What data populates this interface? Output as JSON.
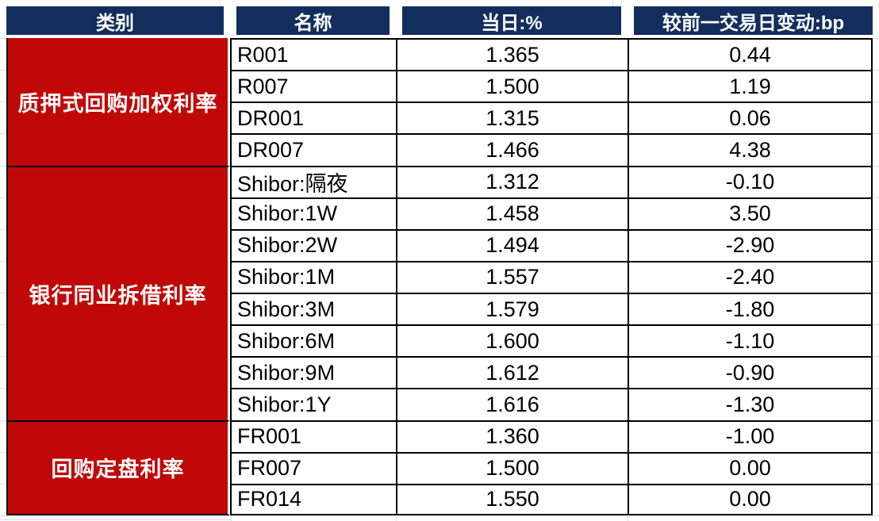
{
  "chart_data": {
    "type": "table",
    "columns": [
      "类别",
      "名称",
      "当日:%",
      "较前一交易日变动:bp"
    ],
    "groups": [
      {
        "category": "质押式回购加权利率",
        "rows": [
          {
            "name": "R001",
            "rate": "1.365",
            "change": "0.44"
          },
          {
            "name": "R007",
            "rate": "1.500",
            "change": "1.19"
          },
          {
            "name": "DR001",
            "rate": "1.315",
            "change": "0.06"
          },
          {
            "name": "DR007",
            "rate": "1.466",
            "change": "4.38"
          }
        ]
      },
      {
        "category": "银行同业拆借利率",
        "rows": [
          {
            "name": "Shibor:隔夜",
            "rate": "1.312",
            "change": "-0.10"
          },
          {
            "name": "Shibor:1W",
            "rate": "1.458",
            "change": "3.50"
          },
          {
            "name": "Shibor:2W",
            "rate": "1.494",
            "change": "-2.90"
          },
          {
            "name": "Shibor:1M",
            "rate": "1.557",
            "change": "-2.40"
          },
          {
            "name": "Shibor:3M",
            "rate": "1.579",
            "change": "-1.80"
          },
          {
            "name": "Shibor:6M",
            "rate": "1.600",
            "change": "-1.10"
          },
          {
            "name": "Shibor:9M",
            "rate": "1.612",
            "change": "-0.90"
          },
          {
            "name": "Shibor:1Y",
            "rate": "1.616",
            "change": "-1.30"
          }
        ]
      },
      {
        "category": "回购定盘利率",
        "rows": [
          {
            "name": "FR001",
            "rate": "1.360",
            "change": "-1.00"
          },
          {
            "name": "FR007",
            "rate": "1.500",
            "change": "0.00"
          },
          {
            "name": "FR014",
            "rate": "1.550",
            "change": "0.00"
          }
        ]
      }
    ]
  },
  "colors": {
    "header_bg": "#132E5D",
    "category_bg": "#C00808",
    "cell_bg": "#FFFFFF",
    "border": "#000000",
    "text_on_fill": "#FFFFFF",
    "text_data": "#000000"
  }
}
